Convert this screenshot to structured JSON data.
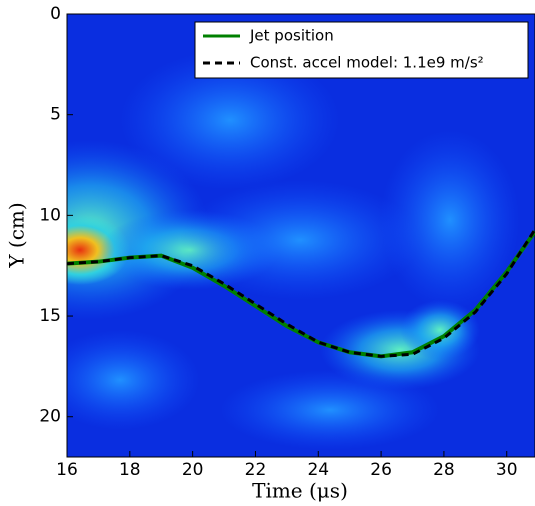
{
  "chart_data": {
    "type": "line",
    "x_label": "Time (μs)",
    "y_label": "Y (cm)",
    "x": [
      16,
      17,
      18,
      19,
      20,
      21,
      22,
      23,
      24,
      25,
      26,
      27,
      28,
      29,
      30,
      30.9
    ],
    "series": [
      {
        "name": "Jet position",
        "color": "#008000",
        "dash": false,
        "values": [
          12.4,
          12.3,
          12.1,
          12.0,
          12.6,
          13.5,
          14.5,
          15.5,
          16.3,
          16.8,
          17.0,
          16.8,
          16.0,
          14.7,
          12.8,
          10.8
        ]
      },
      {
        "name": "Const. accel model: 1.1e9 m/s²",
        "color": "#000000",
        "dash": true,
        "values": [
          12.4,
          12.3,
          12.1,
          12.0,
          12.5,
          13.4,
          14.4,
          15.4,
          16.3,
          16.8,
          17.0,
          16.9,
          16.1,
          14.8,
          12.9,
          10.7
        ]
      }
    ],
    "xlim": [
      16,
      30.9
    ],
    "ylim": [
      0,
      22
    ],
    "y_inverted": true,
    "xticks": [
      16,
      18,
      20,
      22,
      24,
      26,
      28,
      30
    ],
    "yticks": [
      0,
      5,
      10,
      15,
      20
    ],
    "legend": "upper right"
  }
}
